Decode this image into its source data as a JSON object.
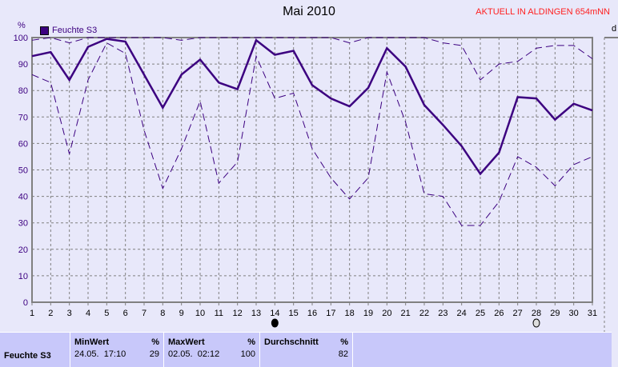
{
  "title": "Mai 2010",
  "notice": "AKTUELL IN ALDINGEN 654mNN",
  "right_axis_label": "d",
  "colors": {
    "series": "#3c0080",
    "grid": "#808080",
    "notice": "#ff2020",
    "panel": "#c8c8fa"
  },
  "chart_data": {
    "type": "line",
    "title": "Mai 2010",
    "ylabel": "%",
    "ylim": [
      0,
      100
    ],
    "yticks": [
      0,
      10,
      20,
      30,
      40,
      50,
      60,
      70,
      80,
      90,
      100
    ],
    "x": [
      1,
      2,
      3,
      4,
      5,
      6,
      7,
      8,
      9,
      10,
      11,
      12,
      13,
      14,
      15,
      16,
      17,
      18,
      19,
      20,
      21,
      22,
      23,
      24,
      25,
      26,
      27,
      28,
      29,
      30,
      31
    ],
    "grid": true,
    "legend": "top-left",
    "legend_entries": [
      "Feuchte S3"
    ],
    "series": [
      {
        "name": "Feuchte S3",
        "style": "solid",
        "values": [
          93,
          94.5,
          84,
          96.5,
          99.5,
          98.5,
          86,
          73.5,
          86,
          91.7,
          83,
          80.5,
          99,
          93.5,
          95,
          82,
          77,
          74,
          81,
          96,
          89,
          74.5,
          67,
          59,
          48.5,
          56.5,
          77.5,
          77,
          69,
          75,
          72.5
        ]
      },
      {
        "style": "dashed",
        "values": [
          99,
          100,
          98,
          100,
          100,
          100,
          100,
          100,
          99,
          100,
          100,
          100,
          100,
          100,
          100,
          100,
          100,
          98,
          100,
          100,
          100,
          100,
          98,
          97,
          84,
          90,
          91,
          96,
          97,
          97,
          92
        ]
      },
      {
        "style": "dashed",
        "values": [
          86,
          83,
          56,
          84,
          98,
          94,
          65,
          43,
          58,
          76,
          45,
          53,
          93,
          77,
          79,
          58,
          47,
          39,
          47,
          87,
          68,
          41,
          40,
          29,
          29,
          38,
          55,
          51,
          44,
          52,
          55
        ]
      }
    ],
    "annotations": [
      {
        "x": 14,
        "icon": "full-moon-icon"
      },
      {
        "x": 28,
        "icon": "new-moon-icon"
      }
    ]
  },
  "panel": {
    "sensor": "Feuchte S3",
    "min": {
      "label": "MinWert",
      "unit": "%",
      "time": "24.05.  17:10",
      "value": "29"
    },
    "max": {
      "label": "MaxWert",
      "unit": "%",
      "time": "02.05.  02:12",
      "value": "100"
    },
    "avg": {
      "label": "Durchschnitt",
      "unit": "%",
      "value": "82"
    }
  }
}
